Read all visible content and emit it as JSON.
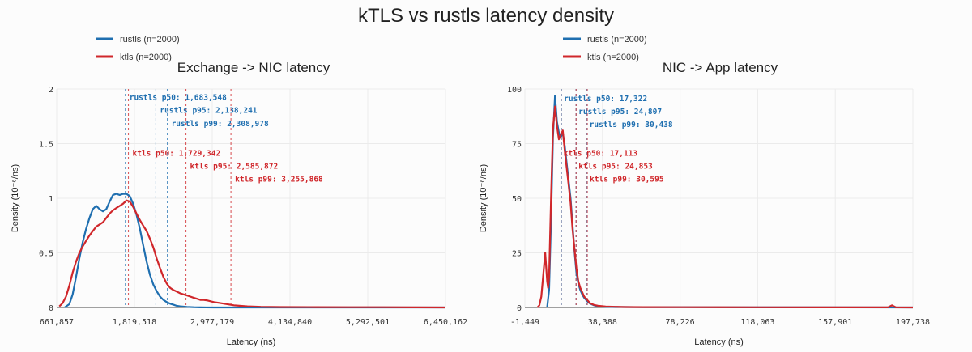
{
  "title": "kTLS vs rustls latency density",
  "colors": {
    "rustls": "#1f6fb0",
    "ktls": "#d0272b"
  },
  "chart_data": [
    {
      "type": "line",
      "title": "Exchange -> NIC latency",
      "xlabel": "Latency (ns)",
      "ylabel": "Density (10⁻⁶/ns)",
      "xlim": [
        661857,
        6450162
      ],
      "ylim": [
        0,
        2
      ],
      "x_ticks": [
        661857,
        1819518,
        2977179,
        4134840,
        5292501,
        6450162
      ],
      "x_tick_labels": [
        "661,857",
        "1,819,518",
        "2,977,179",
        "4,134,840",
        "5,292,501",
        "6,450,162"
      ],
      "y_ticks": [
        0,
        0.5,
        1,
        1.5,
        2
      ],
      "y_tick_labels": [
        "0",
        "0.5",
        "1",
        "1.5",
        "2"
      ],
      "grid": true,
      "legend_position": "top-left",
      "series": [
        {
          "name": "rustls (n=2000)",
          "color": "#1f6fb0",
          "x": [
            780000,
            850000,
            900000,
            950000,
            1000000,
            1050000,
            1100000,
            1150000,
            1200000,
            1250000,
            1300000,
            1350000,
            1400000,
            1450000,
            1500000,
            1550000,
            1600000,
            1650000,
            1700000,
            1750000,
            1800000,
            1850000,
            1900000,
            1950000,
            2000000,
            2050000,
            2100000,
            2150000,
            2200000,
            2250000,
            2300000,
            2350000,
            2400000,
            2450000,
            2500000,
            2600000,
            2700000,
            2800000,
            3000000,
            6450162
          ],
          "y": [
            0,
            0.03,
            0.12,
            0.28,
            0.45,
            0.6,
            0.72,
            0.82,
            0.9,
            0.93,
            0.9,
            0.88,
            0.9,
            0.97,
            1.03,
            1.04,
            1.03,
            1.04,
            1.04,
            1.02,
            0.95,
            0.85,
            0.72,
            0.57,
            0.42,
            0.3,
            0.21,
            0.15,
            0.1,
            0.07,
            0.05,
            0.035,
            0.025,
            0.015,
            0.01,
            0.005,
            0.002,
            0.001,
            0,
            0
          ]
        },
        {
          "name": "ktls (n=2000)",
          "color": "#d0272b",
          "x": [
            700000,
            750000,
            800000,
            850000,
            900000,
            950000,
            1000000,
            1050000,
            1100000,
            1150000,
            1200000,
            1250000,
            1300000,
            1350000,
            1400000,
            1450000,
            1500000,
            1550000,
            1600000,
            1650000,
            1700000,
            1750000,
            1800000,
            1850000,
            1900000,
            1950000,
            2000000,
            2050000,
            2100000,
            2150000,
            2200000,
            2250000,
            2300000,
            2350000,
            2400000,
            2450000,
            2500000,
            2550000,
            2600000,
            2650000,
            2700000,
            2750000,
            2800000,
            2850000,
            2900000,
            3000000,
            3100000,
            3200000,
            3300000,
            3400000,
            3500000,
            3700000,
            4000000,
            4500000,
            5000000,
            5500000,
            6000000,
            6450162
          ],
          "y": [
            0.01,
            0.04,
            0.1,
            0.2,
            0.32,
            0.42,
            0.5,
            0.56,
            0.61,
            0.66,
            0.7,
            0.74,
            0.76,
            0.78,
            0.82,
            0.86,
            0.89,
            0.91,
            0.93,
            0.95,
            0.98,
            0.97,
            0.92,
            0.86,
            0.8,
            0.75,
            0.7,
            0.63,
            0.55,
            0.45,
            0.36,
            0.28,
            0.22,
            0.18,
            0.16,
            0.145,
            0.13,
            0.12,
            0.11,
            0.1,
            0.09,
            0.08,
            0.07,
            0.07,
            0.065,
            0.05,
            0.04,
            0.03,
            0.02,
            0.015,
            0.01,
            0.006,
            0.004,
            0.003,
            0.002,
            0.002,
            0.001,
            0
          ]
        }
      ],
      "annotations": [
        {
          "series": "rustls",
          "label": "rustls p50: 1,683,548",
          "value": 1683548,
          "y_text": 1.93
        },
        {
          "series": "rustls",
          "label": "rustls p95: 2,138,241",
          "value": 2138241,
          "y_text": 1.81
        },
        {
          "series": "rustls",
          "label": "rustls p99: 2,308,978",
          "value": 2308978,
          "y_text": 1.69
        },
        {
          "series": "ktls",
          "label": "ktls p50: 1,729,342",
          "value": 1729342,
          "y_text": 1.42
        },
        {
          "series": "ktls",
          "label": "ktls p95: 2,585,872",
          "value": 2585872,
          "y_text": 1.3
        },
        {
          "series": "ktls",
          "label": "ktls p99: 3,255,868",
          "value": 3255868,
          "y_text": 1.18
        }
      ]
    },
    {
      "type": "line",
      "title": "NIC -> App latency",
      "xlabel": "Latency (ns)",
      "ylabel": "Density (10⁻⁶/ns)",
      "xlim": [
        -1449,
        197738
      ],
      "ylim": [
        0,
        100
      ],
      "x_ticks": [
        -1449,
        38388,
        78226,
        118063,
        157901,
        197738
      ],
      "x_tick_labels": [
        "-1,449",
        "38,388",
        "78,226",
        "118,063",
        "157,901",
        "197,738"
      ],
      "y_ticks": [
        0,
        25,
        50,
        75,
        100
      ],
      "y_tick_labels": [
        "0",
        "25",
        "50",
        "75",
        "100"
      ],
      "grid": true,
      "legend_position": "top-left",
      "series": [
        {
          "name": "rustls (n=2000)",
          "color": "#1f6fb0",
          "x": [
            10000,
            11000,
            12000,
            13000,
            14000,
            15000,
            16000,
            17000,
            18000,
            19000,
            20000,
            21000,
            22000,
            23000,
            24000,
            25000,
            26000,
            27000,
            28000,
            29000,
            30000,
            31000,
            32000,
            34000,
            36000,
            40000,
            45000,
            50000,
            60000,
            80000,
            120000,
            160000,
            197738
          ],
          "y": [
            0,
            8,
            40,
            78,
            97,
            85,
            80,
            78,
            80,
            74,
            66,
            58,
            50,
            38,
            26,
            16,
            11,
            8,
            6,
            4.5,
            3.5,
            2.5,
            1.8,
            1,
            0.6,
            0.3,
            0.2,
            0.2,
            0.1,
            0.1,
            0.05,
            0.05,
            0
          ]
        },
        {
          "name": "ktls (n=2000)",
          "color": "#d0272b",
          "x": [
            5000,
            6000,
            7000,
            8000,
            9000,
            10000,
            10500,
            11000,
            12000,
            13000,
            14000,
            15000,
            16000,
            17000,
            18000,
            19000,
            20000,
            21000,
            22000,
            23000,
            24000,
            25000,
            26000,
            27000,
            28000,
            29000,
            30000,
            31000,
            32000,
            34000,
            36000,
            40000,
            45000,
            50000,
            60000,
            80000,
            120000,
            160000,
            185000,
            187000,
            189000,
            197738
          ],
          "y": [
            0,
            1,
            5,
            15,
            25,
            12,
            9,
            14,
            50,
            82,
            92,
            83,
            77,
            79,
            81,
            72,
            64,
            56,
            48,
            36,
            27,
            18,
            12,
            9,
            7,
            5,
            4,
            3,
            2,
            1.2,
            0.8,
            0.4,
            0.3,
            0.2,
            0.15,
            0.1,
            0.08,
            0.05,
            0.05,
            1,
            0.05,
            0
          ]
        }
      ],
      "annotations": [
        {
          "series": "rustls",
          "label": "rustls p50: 17,322",
          "value": 17322,
          "y_text": 96
        },
        {
          "series": "rustls",
          "label": "rustls p95: 24,807",
          "value": 24807,
          "y_text": 90
        },
        {
          "series": "rustls",
          "label": "rustls p99: 30,438",
          "value": 30438,
          "y_text": 84
        },
        {
          "series": "ktls",
          "label": "ktls p50: 17,113",
          "value": 17113,
          "y_text": 71
        },
        {
          "series": "ktls",
          "label": "ktls p95: 24,853",
          "value": 24853,
          "y_text": 65
        },
        {
          "series": "ktls",
          "label": "ktls p99: 30,595",
          "value": 30595,
          "y_text": 59
        }
      ]
    }
  ]
}
